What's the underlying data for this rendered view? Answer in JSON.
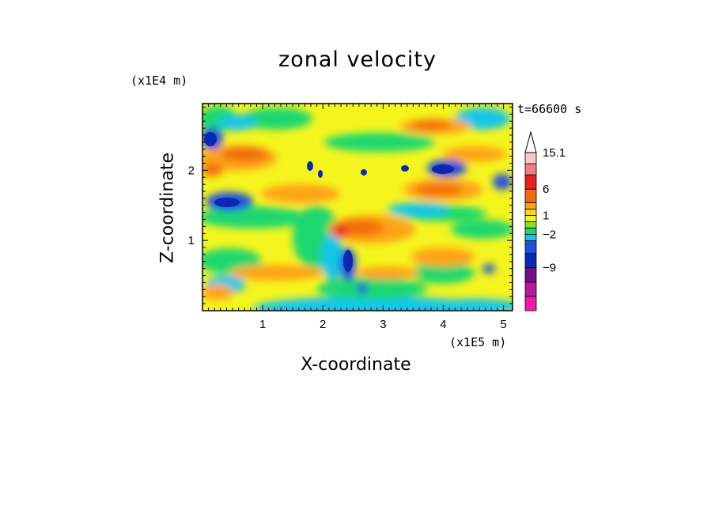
{
  "chart_data": {
    "type": "heatmap",
    "title": "zonal velocity",
    "xlabel": "X-coordinate",
    "ylabel": "Z-coordinate",
    "x_multiplier": "(x1E5 m)",
    "y_multiplier": "(x1E4 m)",
    "time_label": "t=66600 s",
    "xlim": [
      0,
      5.15
    ],
    "ylim": [
      0,
      2.95
    ],
    "x_ticks": [
      "1",
      "2",
      "3",
      "4",
      "5"
    ],
    "y_ticks": [
      "1",
      "2"
    ],
    "colorbar": {
      "levels": [
        -15,
        -12,
        -9,
        -6,
        -3,
        -2,
        -1,
        0,
        1,
        2,
        3,
        6,
        9,
        12,
        15.1
      ],
      "labels": [
        "15.1",
        "6",
        "1",
        "-2",
        "-9"
      ],
      "extend": "max",
      "colors": [
        "#ee1aa8",
        "#b4189c",
        "#700e8c",
        "#0a28b4",
        "#1f4fe0",
        "#16c6ea",
        "#1bd870",
        "#8be022",
        "#f5f51e",
        "#ffd21e",
        "#ffa314",
        "#f26c0c",
        "#e82020",
        "#f08080",
        "#f8c8c8"
      ]
    },
    "grid": false
  }
}
